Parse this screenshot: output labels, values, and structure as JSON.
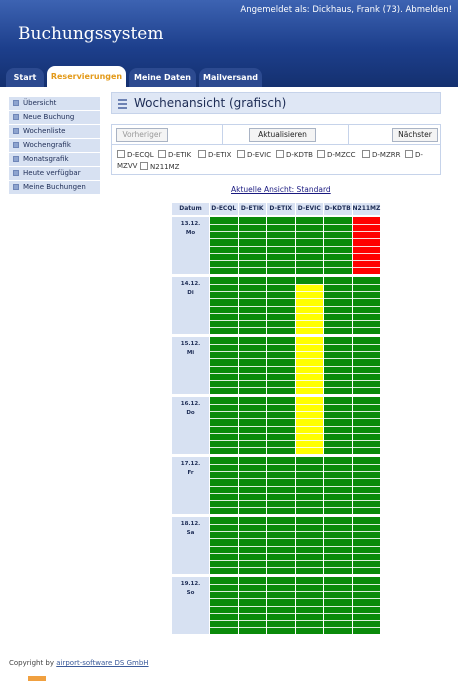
{
  "header": {
    "login_prefix": "Angemeldet als: Dickhaus, Frank (73). ",
    "logout_label": "Abmelden!",
    "brand": "Buchungssystem"
  },
  "tabs": [
    {
      "label": "Start",
      "active": false
    },
    {
      "label": "Reservierungen",
      "active": true
    },
    {
      "label": "Meine Daten",
      "active": false
    },
    {
      "label": "Mailversand",
      "active": false
    }
  ],
  "sidebar": {
    "items": [
      {
        "label": "Übersicht"
      },
      {
        "label": "Neue Buchung"
      },
      {
        "label": "Wochenliste"
      },
      {
        "label": "Wochengrafik"
      },
      {
        "label": "Monatsgrafik"
      },
      {
        "label": "Heute verfügbar"
      },
      {
        "label": "Meine Buchungen"
      }
    ]
  },
  "page": {
    "title": "Wochenansicht (grafisch)"
  },
  "controls": {
    "prev_label": "Vorheriger",
    "refresh_label": "Aktualisieren",
    "next_label": "Nächster",
    "aircraft": [
      "D-ECQL",
      "D-ETIK",
      "D-ETIX",
      "D-EVIC",
      "D-KDTB",
      "D-MZCC",
      "D-MZRR",
      "D-MZVV",
      "N211MZ"
    ]
  },
  "view_link": "Aktuelle Ansicht: Standard",
  "grid": {
    "date_header": "Datum",
    "columns": [
      "D-ECQL",
      "D-ETIK",
      "D-ETIX",
      "D-EVIC",
      "D-KDTB",
      "N211MZ"
    ],
    "days": [
      {
        "date": "13.12.",
        "day": "Mo"
      },
      {
        "date": "14.12.",
        "day": "Di"
      },
      {
        "date": "15.12.",
        "day": "Mi"
      },
      {
        "date": "16.12.",
        "day": "Do"
      },
      {
        "date": "17.12.",
        "day": "Fr"
      },
      {
        "date": "18.12.",
        "day": "Sa"
      },
      {
        "date": "19.12.",
        "day": "So"
      }
    ],
    "colors": {
      "free": "#0a8a0a",
      "reserved": "#ffff00",
      "booked": "#ff0000",
      "line": "#ffffff"
    },
    "blocks": [
      {
        "day": 0,
        "column": 5,
        "status": "booked",
        "from": 0.0,
        "to": 1.0
      },
      {
        "day": 1,
        "column": 3,
        "status": "reserved",
        "from": 0.12,
        "to": 1.0
      },
      {
        "day": 2,
        "column": 3,
        "status": "reserved",
        "from": 0.0,
        "to": 1.0
      },
      {
        "day": 3,
        "column": 3,
        "status": "reserved",
        "from": 0.0,
        "to": 1.0
      }
    ]
  },
  "footer": {
    "prefix": "Copyright by ",
    "link": "airport-software DS GmbH"
  }
}
